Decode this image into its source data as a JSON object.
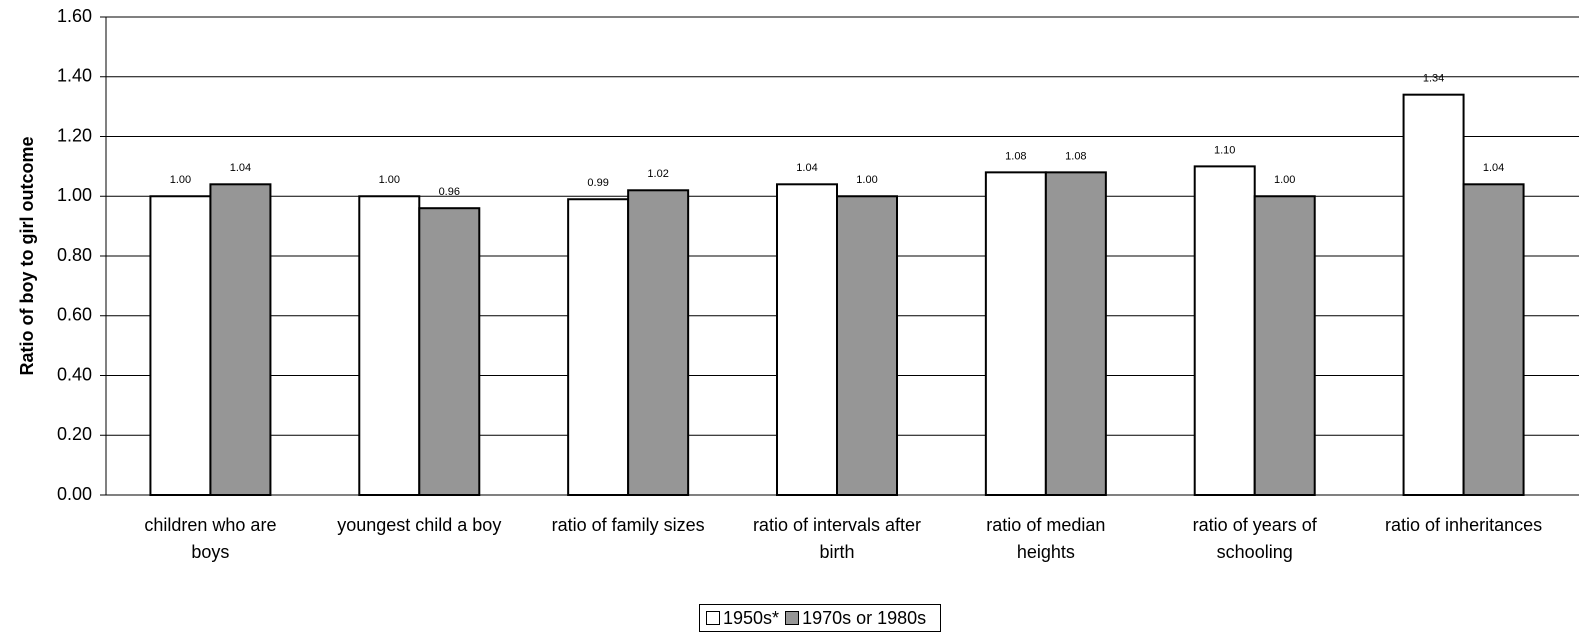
{
  "chart_data": {
    "type": "bar",
    "y_label": "Ratio of boy to girl outcome",
    "categories": [
      "children who are\nboys",
      "youngest child a boy",
      "ratio of family sizes",
      "ratio of intervals after\nbirth",
      "ratio of median\nheights",
      "ratio of years of\nschooling",
      "ratio of inheritances"
    ],
    "series": [
      {
        "name": "1950s*",
        "color": "#ffffff",
        "values": [
          1,
          1,
          0.99,
          1.04,
          1.08,
          1.1,
          1.34
        ],
        "value_labels": [
          "1.00",
          "1.00",
          "0.99",
          "1.04",
          "1.08",
          "1.10",
          "1.34"
        ]
      },
      {
        "name": "1970s or 1980s",
        "color": "#969696",
        "values": [
          1.04,
          0.96,
          1.02,
          1,
          1.08,
          1,
          1.04
        ],
        "value_labels": [
          "1.04",
          "0.96",
          "1.02",
          "1.00",
          "1.08",
          "1.00",
          "1.04"
        ]
      }
    ],
    "ylim": [
      0,
      1.6
    ],
    "yticks": [
      {
        "value": 0,
        "label": "0.00"
      },
      {
        "value": 0.2,
        "label": "0.20"
      },
      {
        "value": 0.4,
        "label": "0.40"
      },
      {
        "value": 0.6,
        "label": "0.60"
      },
      {
        "value": 0.8,
        "label": "0.80"
      },
      {
        "value": 1,
        "label": "1.00"
      },
      {
        "value": 1.2,
        "label": "1.20"
      },
      {
        "value": 1.4,
        "label": "1.40"
      },
      {
        "value": 1.6,
        "label": "1.60"
      }
    ],
    "grid": true,
    "legend": "bottom"
  }
}
